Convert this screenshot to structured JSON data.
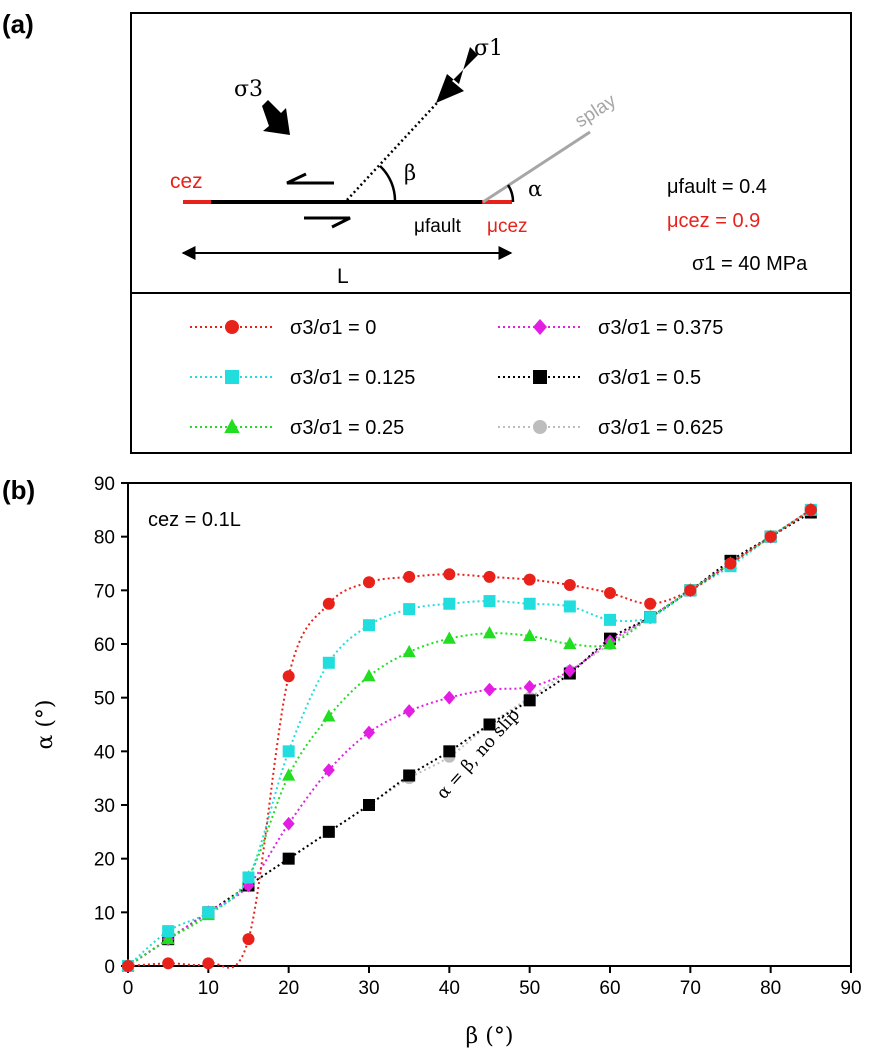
{
  "panel_a": {
    "label": "(a)",
    "diagram": {
      "sigma1_label": "σ1",
      "sigma3_label": "σ3",
      "beta_label": "β",
      "alpha_label": "α",
      "splay_label": "splay",
      "cez_label": "cez",
      "mu_fault_label": "μfault",
      "mu_cez_label": "μcez",
      "length_label": "L",
      "params": {
        "mu_fault": "μfault = 0.4",
        "mu_cez": "μcez = 0.9",
        "sigma1": "σ1 = 40 MPa"
      },
      "cez_color": "#e8221b",
      "splay_color": "#a6a6a6"
    }
  },
  "panel_b": {
    "label": "(b)",
    "annotation_cez": "cez = 0.1L",
    "annotation_line": "α = β, no slip"
  },
  "chart_data": {
    "type": "line",
    "xlabel": "β (°)",
    "ylabel": "α (°)",
    "xlim": [
      0,
      90
    ],
    "ylim": [
      0,
      90
    ],
    "xticks": [
      0,
      10,
      20,
      30,
      40,
      50,
      60,
      70,
      80,
      90
    ],
    "yticks": [
      0,
      10,
      20,
      30,
      40,
      50,
      60,
      70,
      80,
      90
    ],
    "grid": false,
    "legend_placement": "separate box above plot",
    "series": [
      {
        "name": "σ3/σ1 = 0.625",
        "marker": "circle",
        "color": "#bdbdbd",
        "x": [
          0,
          5,
          10,
          15,
          20,
          25,
          30,
          35,
          40,
          45,
          50,
          55,
          60,
          65,
          70,
          75,
          80,
          85
        ],
        "y": [
          0,
          5,
          10,
          15,
          20,
          25,
          30,
          35,
          39,
          45,
          50,
          55,
          60,
          65,
          70,
          75,
          80,
          85
        ]
      },
      {
        "name": "σ3/σ1 = 0.5",
        "marker": "square",
        "color": "#000000",
        "x": [
          0,
          5,
          10,
          15,
          20,
          25,
          30,
          35,
          40,
          45,
          50,
          55,
          60,
          65,
          70,
          75,
          80,
          85
        ],
        "y": [
          0,
          5,
          10,
          15,
          20,
          25,
          30,
          35.5,
          40,
          45,
          49.5,
          54.5,
          61,
          65,
          70,
          75.5,
          80,
          84.5
        ]
      },
      {
        "name": "σ3/σ1 = 0.375",
        "marker": "diamond",
        "color": "#e31ee3",
        "x": [
          0,
          5,
          10,
          15,
          20,
          25,
          30,
          35,
          40,
          45,
          50,
          55,
          60,
          65,
          70,
          75,
          80,
          85
        ],
        "y": [
          0,
          5,
          10,
          15,
          26.5,
          36.5,
          43.5,
          47.5,
          50,
          51.5,
          52,
          55,
          60.5,
          65,
          70,
          75,
          80,
          85
        ]
      },
      {
        "name": "σ3/σ1 = 0.25",
        "marker": "triangle",
        "color": "#22dd22",
        "x": [
          0,
          5,
          10,
          15,
          20,
          25,
          30,
          35,
          40,
          45,
          50,
          55,
          60,
          65,
          70,
          75,
          80,
          85
        ],
        "y": [
          0,
          5,
          9.5,
          16.5,
          35.5,
          46.5,
          54,
          58.5,
          61,
          62,
          61.5,
          60,
          60,
          65,
          70,
          75,
          80,
          85
        ]
      },
      {
        "name": "σ3/σ1 = 0.125",
        "marker": "square",
        "color": "#22dddd",
        "x": [
          0,
          5,
          10,
          15,
          20,
          25,
          30,
          35,
          40,
          45,
          50,
          55,
          60,
          65,
          70,
          75,
          80,
          85
        ],
        "y": [
          0,
          6.5,
          10,
          16.5,
          40,
          56.5,
          63.5,
          66.5,
          67.5,
          68,
          67.5,
          67,
          64.5,
          65,
          70,
          74.5,
          80,
          85
        ]
      },
      {
        "name": "σ3/σ1 = 0",
        "marker": "circle",
        "color": "#e8221b",
        "x": [
          0,
          5,
          10,
          15,
          20,
          25,
          30,
          35,
          40,
          45,
          50,
          55,
          60,
          65,
          70,
          75,
          80,
          85
        ],
        "y": [
          0,
          0.5,
          0.5,
          5,
          54,
          67.5,
          71.5,
          72.5,
          73,
          72.5,
          72,
          71,
          69.5,
          67.5,
          70,
          75,
          80,
          85
        ]
      }
    ]
  }
}
